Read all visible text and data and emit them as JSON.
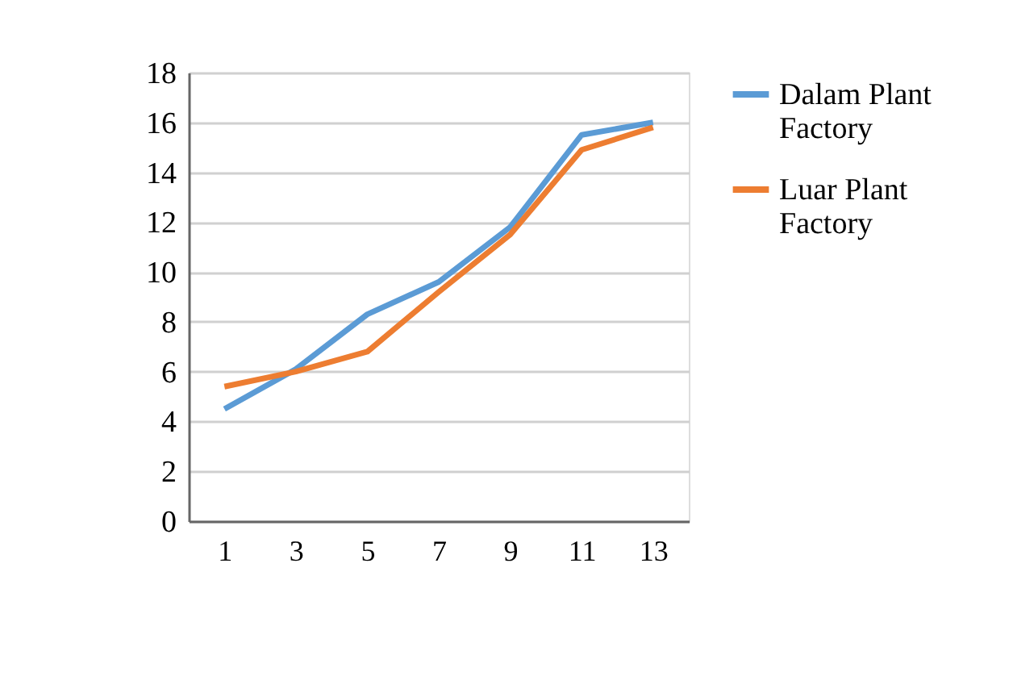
{
  "chart_data": {
    "type": "line",
    "x": [
      1,
      3,
      5,
      7,
      9,
      11,
      13
    ],
    "xlim": [
      0,
      14
    ],
    "xticks": [
      1,
      3,
      5,
      7,
      9,
      11,
      13
    ],
    "series": [
      {
        "name": "Dalam Plant Factory",
        "color": "#5b9bd5",
        "values": [
          4.5,
          6.1,
          8.3,
          9.6,
          11.8,
          15.5,
          16.0
        ]
      },
      {
        "name": "Luar Plant Factory",
        "color": "#ed7d31",
        "values": [
          5.4,
          6.0,
          6.8,
          9.2,
          11.5,
          14.9,
          15.8
        ]
      }
    ],
    "ylim": [
      0,
      18
    ],
    "yticks": [
      0,
      2,
      4,
      6,
      8,
      10,
      12,
      14,
      16,
      18
    ],
    "grid": "y",
    "legend": "right",
    "marker": "none",
    "line_style": "solid"
  }
}
